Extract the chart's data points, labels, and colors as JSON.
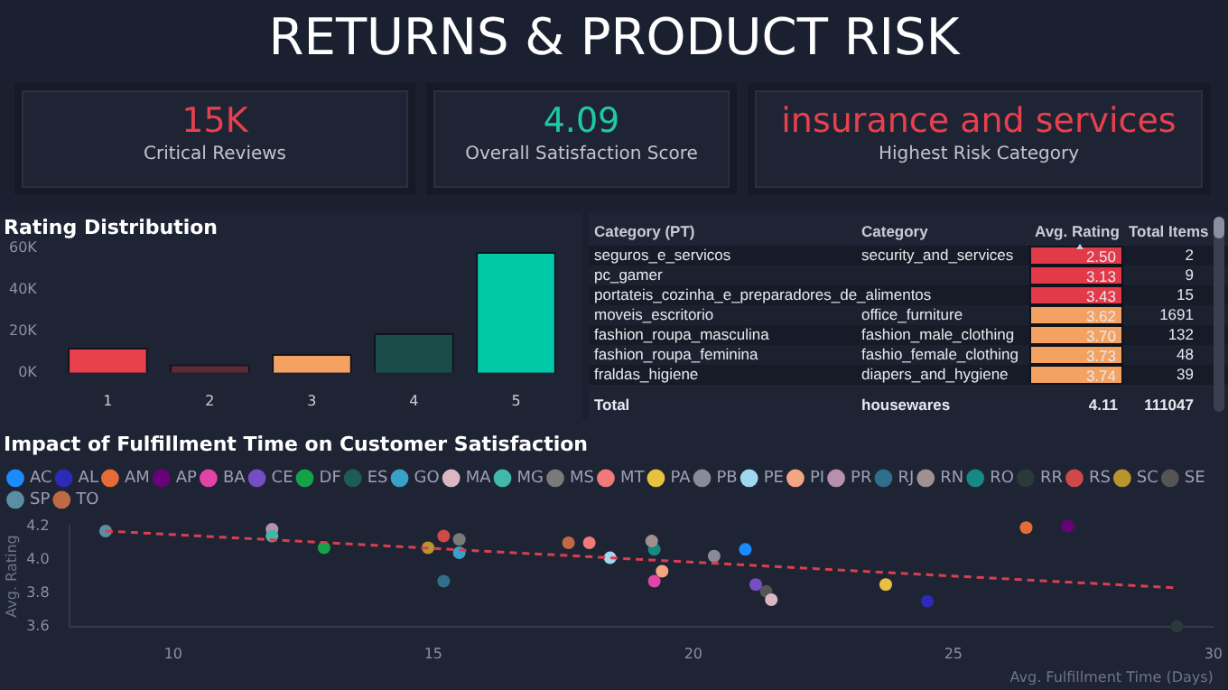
{
  "chart_data": [
    {
      "type": "other",
      "title": "RETURNS & PRODUCT RISK",
      "annotations": [
        "15K",
        "Critical Reviews",
        "4.09",
        "Overall Satisfaction Score",
        "insurance and services",
        "Highest Risk Category"
      ],
      "colors": [
        "#e8404c",
        "#1fc9a5",
        "#e8404c"
      ]
    },
    {
      "type": "bar",
      "title": "Rating Distribution",
      "categories": [
        "1",
        "2",
        "3",
        "4",
        "5"
      ],
      "values": [
        12000,
        4000,
        9000,
        19000,
        58000
      ],
      "colors": [
        "#e8404c",
        "#5e2a35",
        "#f4a261",
        "#1a4d4a",
        "#00c9a7"
      ],
      "ylim": [
        0,
        60000
      ],
      "yticks": [
        {
          "value": 0,
          "label": "0K"
        },
        {
          "value": 20000,
          "label": "20K"
        },
        {
          "value": 40000,
          "label": "40K"
        },
        {
          "value": 60000,
          "label": "60K"
        }
      ],
      "grid": false
    },
    {
      "type": "other",
      "categories": [
        "Category (PT)",
        "Category",
        "Avg. Rating",
        "Total Items"
      ],
      "annotations": [
        "seguros_e_servicos",
        "security_and_services",
        "2.50",
        "2",
        "pc_gamer",
        null,
        "3.13",
        "9",
        "portateis_cozinha_e_preparadores_de_alimentos",
        null,
        "3.43",
        "15",
        "moveis_escritorio",
        "office_furniture",
        "3.62",
        "1691",
        "fashion_roupa_masculina",
        "fashion_male_clothing",
        "3.70",
        "132",
        "fashion_roupa_feminina",
        "fashio_female_clothing",
        "3.73",
        "48",
        "fraldas_higiene",
        "diapers_and_hygiene",
        "3.74",
        "39",
        "Total",
        "housewares",
        "4.11",
        "111047"
      ],
      "colors": [
        null,
        null,
        "#e23a48",
        null,
        null,
        null,
        "#e23a48",
        null,
        null,
        null,
        "#e23a48",
        null,
        null,
        null,
        "#f4a261",
        null,
        null,
        null,
        "#f4a261",
        null,
        null,
        null,
        "#f4a261",
        null,
        null,
        null,
        "#f4a261",
        null,
        null,
        null,
        null,
        null
      ]
    },
    {
      "type": "scatter",
      "title": "Impact of Fulfillment Time on Customer Satisfaction",
      "xlabel": "Avg. Fulfillment Time (Days)",
      "ylabel": "Avg. Rating",
      "xlim": [
        8,
        30
      ],
      "ylim": [
        3.6,
        4.2
      ],
      "xticks": [
        10,
        15,
        20,
        25,
        30
      ],
      "yticks": [
        3.6,
        3.8,
        {
          "value": 4,
          "label": "4.0"
        },
        4.2
      ],
      "grid": false,
      "legend": "top left",
      "marker": "circle",
      "series": [
        {
          "name": "AC",
          "color": "#1a8cff",
          "x": [
            21.0
          ],
          "values": [
            4.06
          ]
        },
        {
          "name": "AL",
          "color": "#2b2bb8",
          "x": [
            24.5
          ],
          "values": [
            3.75
          ]
        },
        {
          "name": "AM",
          "color": "#e66c37",
          "x": [
            26.4
          ],
          "values": [
            4.19
          ]
        },
        {
          "name": "AP",
          "color": "#6b007b",
          "x": [
            27.2
          ],
          "values": [
            4.2
          ]
        },
        {
          "name": "BA",
          "color": "#e044a7",
          "x": [
            19.25
          ],
          "values": [
            3.87
          ]
        },
        {
          "name": "CE",
          "color": "#744ec2",
          "x": [
            21.2
          ],
          "values": [
            3.85
          ]
        },
        {
          "name": "DF",
          "color": "#15a34a",
          "x": [
            12.9
          ],
          "values": [
            4.07
          ]
        },
        {
          "name": "ES",
          "color": "#1d5c57"
        },
        {
          "name": "GO",
          "color": "#3aa0c8",
          "x": [
            15.5
          ],
          "values": [
            4.04
          ]
        },
        {
          "name": "MA",
          "color": "#d9b8c4",
          "x": [
            21.5
          ],
          "values": [
            3.76
          ]
        },
        {
          "name": "MG",
          "color": "#41b8a8",
          "x": [
            11.9
          ],
          "values": [
            4.14
          ]
        },
        {
          "name": "MS",
          "color": "#7a7a7a",
          "x": [
            15.5
          ],
          "values": [
            4.12
          ]
        },
        {
          "name": "MT",
          "color": "#f07a7a",
          "x": [
            18.0
          ],
          "values": [
            4.1
          ]
        },
        {
          "name": "PA",
          "color": "#e8c140",
          "x": [
            23.7
          ],
          "values": [
            3.85
          ]
        },
        {
          "name": "PB",
          "color": "#8a8a99",
          "x": [
            20.4
          ],
          "values": [
            4.02
          ]
        },
        {
          "name": "PE",
          "color": "#a0d8ef",
          "x": [
            18.4
          ],
          "values": [
            4.01
          ]
        },
        {
          "name": "PI",
          "color": "#f4a582",
          "x": [
            19.4
          ],
          "values": [
            3.93
          ]
        },
        {
          "name": "PR",
          "color": "#b98fae",
          "x": [
            11.9
          ],
          "values": [
            4.18
          ]
        },
        {
          "name": "RJ",
          "color": "#2f6f8a",
          "x": [
            15.2
          ],
          "values": [
            3.87
          ]
        },
        {
          "name": "RN",
          "color": "#a09090",
          "x": [
            19.2
          ],
          "values": [
            4.11
          ]
        },
        {
          "name": "RO",
          "color": "#168980",
          "x": [
            19.25
          ],
          "values": [
            4.06
          ]
        },
        {
          "name": "RR",
          "color": "#2a3a3a",
          "x": [
            29.3
          ],
          "values": [
            3.6
          ]
        },
        {
          "name": "RS",
          "color": "#d04848",
          "x": [
            15.2
          ],
          "values": [
            4.14
          ]
        },
        {
          "name": "SC",
          "color": "#b8962e",
          "x": [
            14.9
          ],
          "values": [
            4.07
          ]
        },
        {
          "name": "SE",
          "color": "#555555",
          "x": [
            21.4
          ],
          "values": [
            3.81
          ]
        },
        {
          "name": "SP",
          "color": "#5b8ea6",
          "x": [
            8.7
          ],
          "values": [
            4.17
          ]
        },
        {
          "name": "TO",
          "color": "#c06a45",
          "x": [
            17.6
          ],
          "values": [
            4.1
          ]
        },
        {
          "type": "line",
          "color": "#d9404f",
          "line_style": "dashed",
          "marker": "none",
          "x": [
            8.7,
            29.3
          ],
          "values": [
            4.17,
            3.83
          ]
        }
      ]
    }
  ]
}
